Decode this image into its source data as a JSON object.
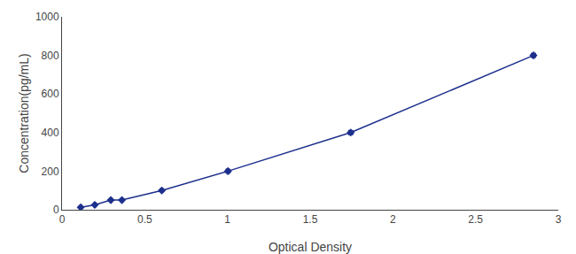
{
  "chart_data": {
    "type": "line",
    "x": [
      0.113,
      0.198,
      0.295,
      0.362,
      0.603,
      1.003,
      1.745,
      2.85
    ],
    "values": [
      12.5,
      25.0,
      50.0,
      50.0,
      100.0,
      200.0,
      400.0,
      800.0
    ],
    "xerr": [
      0.005,
      0.006,
      0.006,
      0.006,
      0.007,
      0.01,
      0.012,
      0.01
    ],
    "yerr": [
      1.5,
      2.0,
      3.0,
      3.0,
      4.0,
      7.0,
      9.0,
      10.0
    ],
    "color": "#1c2f8c",
    "marker": "diamond",
    "xlabel": "Optical Density",
    "ylabel": "Concentration(pg/mL)",
    "xlim": [
      0.0,
      3.0
    ],
    "ylim": [
      0,
      1000
    ],
    "xticks": [
      0,
      0.5,
      1,
      1.5,
      2,
      2.5,
      3
    ],
    "yticks": [
      0,
      200,
      400,
      600,
      800,
      1000
    ],
    "grid": false
  }
}
